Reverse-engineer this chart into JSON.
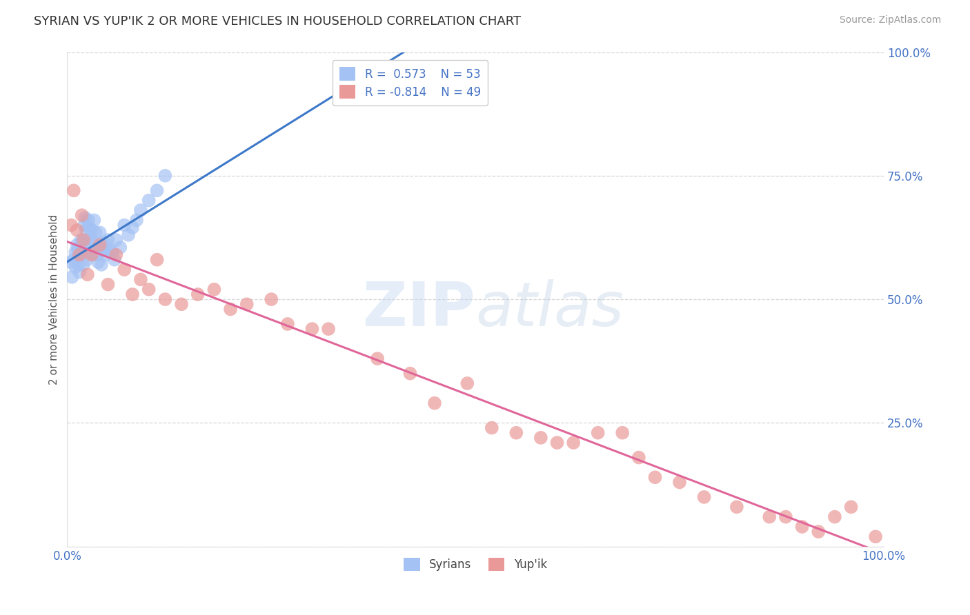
{
  "title": "SYRIAN VS YUP'IK 2 OR MORE VEHICLES IN HOUSEHOLD CORRELATION CHART",
  "source": "Source: ZipAtlas.com",
  "ylabel": "2 or more Vehicles in Household",
  "xlim": [
    0.0,
    1.0
  ],
  "ylim": [
    0.0,
    1.0
  ],
  "yticks": [
    0.0,
    0.25,
    0.5,
    0.75,
    1.0
  ],
  "ytick_labels": [
    "",
    "25.0%",
    "50.0%",
    "75.0%",
    "100.0%"
  ],
  "xtick_labels": [
    "0.0%",
    "100.0%"
  ],
  "background_color": "#ffffff",
  "syrians_color": "#a4c2f4",
  "yupik_color": "#ea9999",
  "syrians_line_color": "#3d78c9",
  "yupik_line_color": "#e06699",
  "tick_color": "#4472c4",
  "R_syrians": 0.573,
  "N_syrians": 53,
  "R_yupik": -0.814,
  "N_yupik": 49,
  "syrians_x": [
    0.005,
    0.006,
    0.008,
    0.01,
    0.01,
    0.012,
    0.013,
    0.014,
    0.015,
    0.016,
    0.017,
    0.018,
    0.018,
    0.02,
    0.02,
    0.021,
    0.022,
    0.023,
    0.024,
    0.025,
    0.026,
    0.027,
    0.028,
    0.03,
    0.03,
    0.031,
    0.032,
    0.033,
    0.035,
    0.035,
    0.037,
    0.038,
    0.04,
    0.04,
    0.042,
    0.043,
    0.045,
    0.047,
    0.048,
    0.05,
    0.052,
    0.055,
    0.058,
    0.06,
    0.065,
    0.07,
    0.075,
    0.08,
    0.085,
    0.09,
    0.1,
    0.11,
    0.12
  ],
  "syrians_y": [
    0.575,
    0.545,
    0.58,
    0.565,
    0.595,
    0.61,
    0.6,
    0.57,
    0.555,
    0.59,
    0.62,
    0.6,
    0.615,
    0.57,
    0.595,
    0.65,
    0.665,
    0.64,
    0.58,
    0.62,
    0.66,
    0.645,
    0.595,
    0.62,
    0.64,
    0.59,
    0.615,
    0.66,
    0.6,
    0.635,
    0.59,
    0.575,
    0.605,
    0.635,
    0.57,
    0.61,
    0.615,
    0.59,
    0.6,
    0.62,
    0.6,
    0.595,
    0.58,
    0.62,
    0.605,
    0.65,
    0.63,
    0.645,
    0.66,
    0.68,
    0.7,
    0.72,
    0.75
  ],
  "yupik_x": [
    0.005,
    0.008,
    0.012,
    0.015,
    0.018,
    0.02,
    0.025,
    0.03,
    0.04,
    0.05,
    0.06,
    0.07,
    0.08,
    0.09,
    0.1,
    0.11,
    0.12,
    0.14,
    0.16,
    0.18,
    0.2,
    0.22,
    0.25,
    0.27,
    0.3,
    0.32,
    0.38,
    0.42,
    0.45,
    0.49,
    0.52,
    0.55,
    0.58,
    0.6,
    0.62,
    0.65,
    0.68,
    0.7,
    0.72,
    0.75,
    0.78,
    0.82,
    0.86,
    0.88,
    0.9,
    0.92,
    0.94,
    0.96,
    0.99
  ],
  "yupik_y": [
    0.65,
    0.72,
    0.64,
    0.59,
    0.67,
    0.62,
    0.55,
    0.59,
    0.61,
    0.53,
    0.59,
    0.56,
    0.51,
    0.54,
    0.52,
    0.58,
    0.5,
    0.49,
    0.51,
    0.52,
    0.48,
    0.49,
    0.5,
    0.45,
    0.44,
    0.44,
    0.38,
    0.35,
    0.29,
    0.33,
    0.24,
    0.23,
    0.22,
    0.21,
    0.21,
    0.23,
    0.23,
    0.18,
    0.14,
    0.13,
    0.1,
    0.08,
    0.06,
    0.06,
    0.04,
    0.03,
    0.06,
    0.08,
    0.02
  ]
}
